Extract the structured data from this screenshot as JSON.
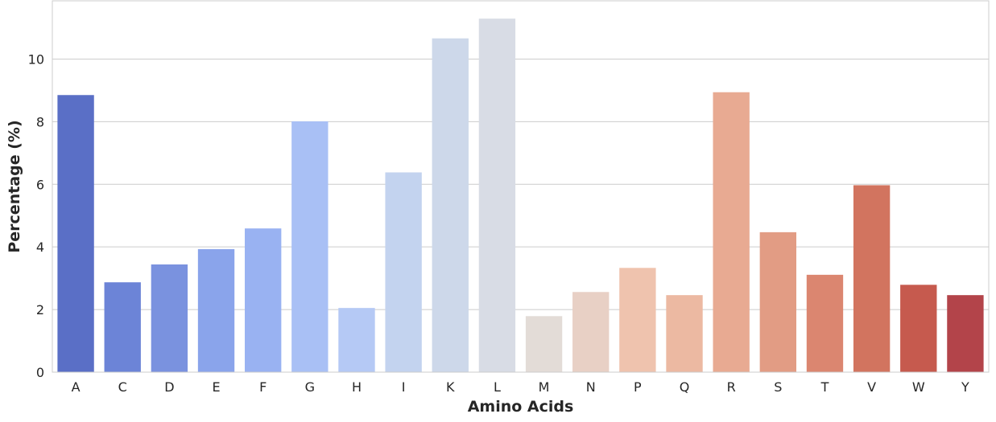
{
  "chart_data": {
    "type": "bar",
    "title": "",
    "xlabel": "Amino Acids",
    "ylabel": "Percentage (%)",
    "categories": [
      "A",
      "C",
      "D",
      "E",
      "F",
      "G",
      "H",
      "I",
      "K",
      "L",
      "M",
      "N",
      "P",
      "Q",
      "R",
      "S",
      "T",
      "V",
      "W",
      "Y"
    ],
    "values": [
      8.85,
      2.87,
      3.44,
      3.93,
      4.59,
      8.01,
      2.05,
      6.38,
      10.66,
      11.29,
      1.79,
      2.56,
      3.33,
      2.46,
      8.94,
      4.47,
      3.11,
      5.97,
      2.79,
      2.46
    ],
    "colors": [
      "#5a6fc6",
      "#6c84d7",
      "#7a92df",
      "#8aa4eb",
      "#99b2f2",
      "#a9c0f5",
      "#b5c9f5",
      "#c3d3ef",
      "#cdd8ea",
      "#d8dce5",
      "#e3dcd7",
      "#e8d0c5",
      "#efc3ae",
      "#ecb9a2",
      "#e8aa92",
      "#e29c84",
      "#db8670",
      "#d2745f",
      "#c65a4e",
      "#b3444a"
    ],
    "ylim": [
      0,
      11.86
    ],
    "yticks": [
      0,
      2,
      4,
      6,
      8,
      10
    ],
    "grid": true,
    "legend": "none"
  }
}
